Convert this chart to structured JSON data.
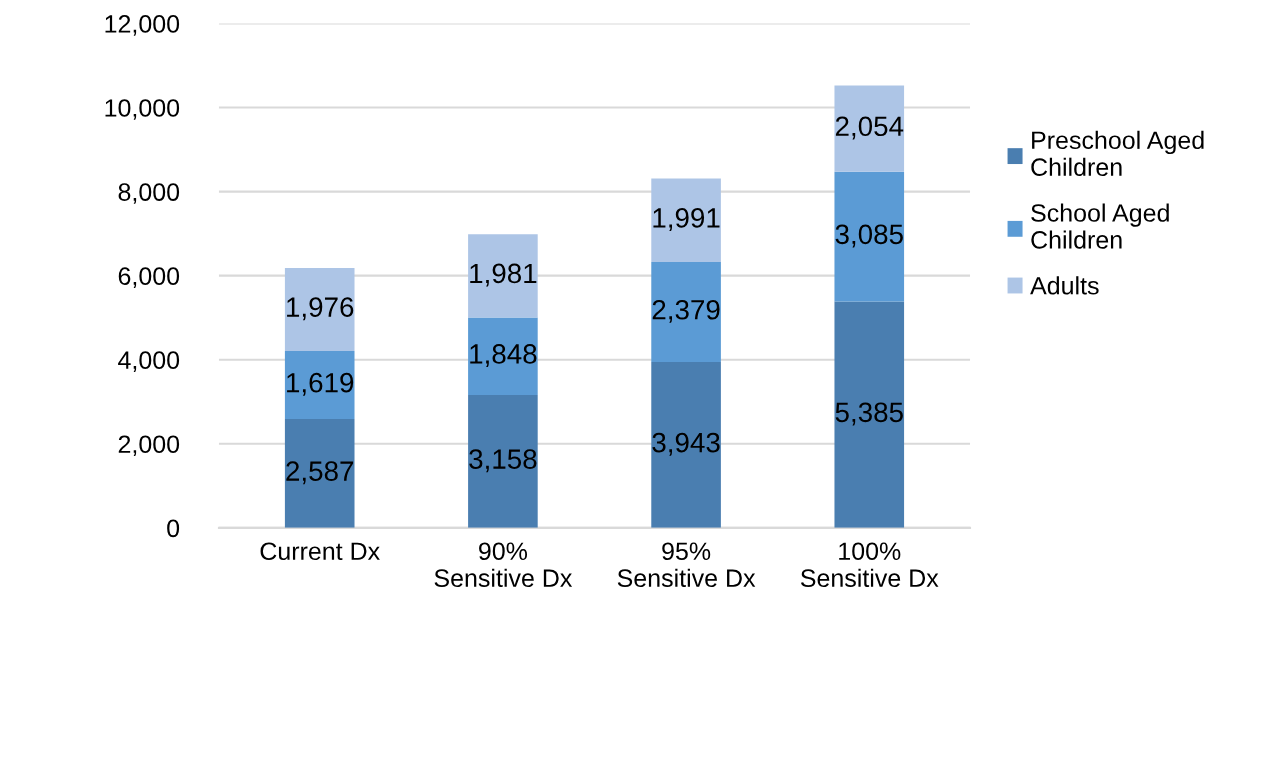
{
  "chart_data": {
    "type": "bar",
    "stacked": true,
    "categories": [
      "Current Dx",
      "90%\nSensitive Dx",
      "95%\nSensitive Dx",
      "100%\nSensitive Dx"
    ],
    "series": [
      {
        "name": "Preschool Aged\nChildren",
        "color": "#4a7eb0",
        "values": [
          2587,
          3158,
          3943,
          5385
        ],
        "value_labels": [
          "2,587",
          "3,158",
          "3,943",
          "5,385"
        ]
      },
      {
        "name": "School Aged\nChildren",
        "color": "#5b9bd5",
        "values": [
          1619,
          1848,
          2379,
          3085
        ],
        "value_labels": [
          "1,619",
          "1,848",
          "2,379",
          "3,085"
        ]
      },
      {
        "name": "Adults",
        "color": "#adc5e6",
        "values": [
          1976,
          1981,
          1991,
          2054
        ],
        "value_labels": [
          "1,976",
          "1,981",
          "1,991",
          "2,054"
        ]
      }
    ],
    "ylim": [
      0,
      12000
    ],
    "yticks": [
      {
        "value": 0,
        "label": "0"
      },
      {
        "value": 2000,
        "label": "2,000"
      },
      {
        "value": 4000,
        "label": "4,000"
      },
      {
        "value": 6000,
        "label": "6,000"
      },
      {
        "value": 8000,
        "label": "8,000"
      },
      {
        "value": 10000,
        "label": "10,000"
      },
      {
        "value": 12000,
        "label": "12,000"
      }
    ],
    "grid": "y",
    "legend": "right"
  }
}
